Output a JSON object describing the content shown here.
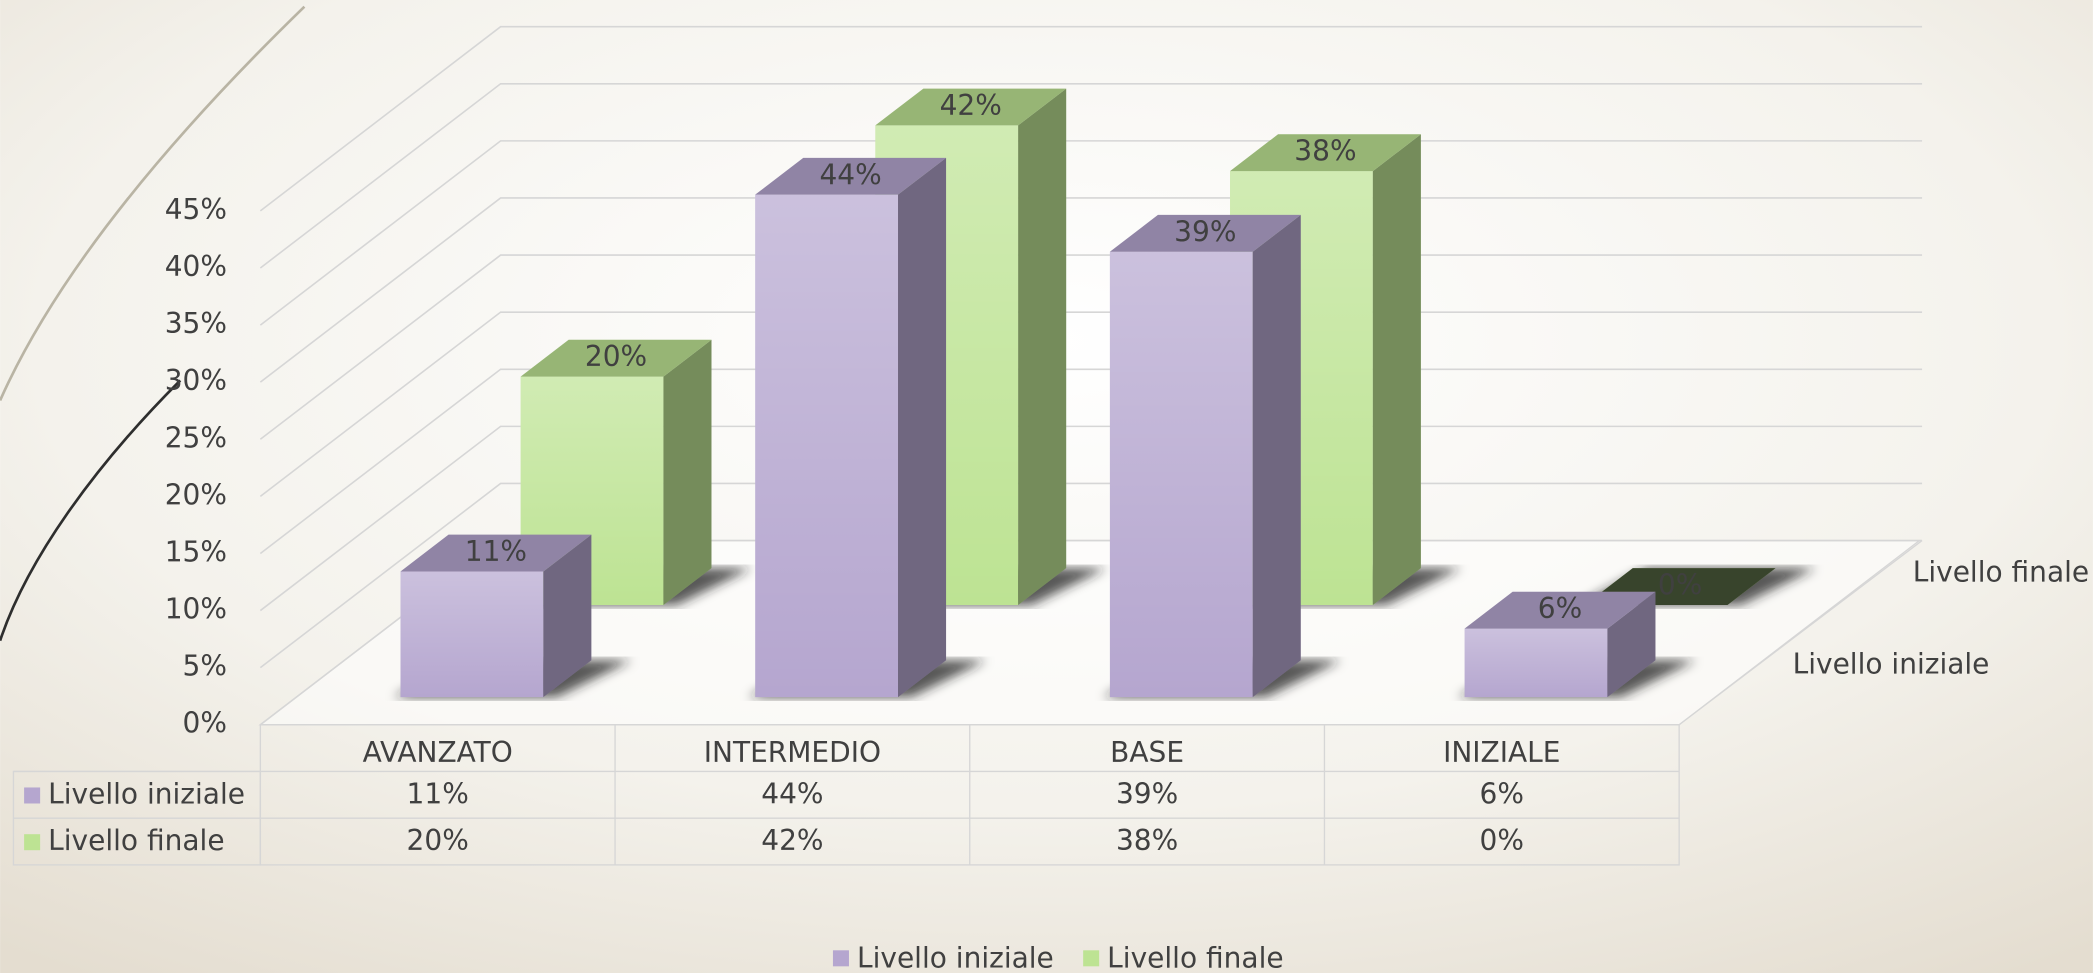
{
  "chart_data": {
    "type": "bar",
    "categories": [
      "AVANZATO",
      "INTERMEDIO",
      "BASE",
      "INIZIALE"
    ],
    "series": [
      {
        "name": "Livello iniziale",
        "color": "#b5a6cf",
        "values": [
          11,
          44,
          39,
          6
        ],
        "value_labels": [
          "11%",
          "44%",
          "39%",
          "6%"
        ]
      },
      {
        "name": "Livello finale",
        "color": "#bde393",
        "values": [
          20,
          42,
          38,
          0
        ],
        "value_labels": [
          "20%",
          "42%",
          "38%",
          "0%"
        ]
      }
    ],
    "ylim": [
      0,
      45
    ],
    "yticks": [
      {
        "value": 0,
        "label": "0%"
      },
      {
        "value": 5,
        "label": "5%"
      },
      {
        "value": 10,
        "label": "10%"
      },
      {
        "value": 15,
        "label": "15%"
      },
      {
        "value": 20,
        "label": "20%"
      },
      {
        "value": 25,
        "label": "25%"
      },
      {
        "value": 30,
        "label": "30%"
      },
      {
        "value": 35,
        "label": "35%"
      },
      {
        "value": 40,
        "label": "40%"
      },
      {
        "value": 45,
        "label": "45%"
      }
    ],
    "grid": true,
    "legend": "bottom",
    "data_table": true
  }
}
